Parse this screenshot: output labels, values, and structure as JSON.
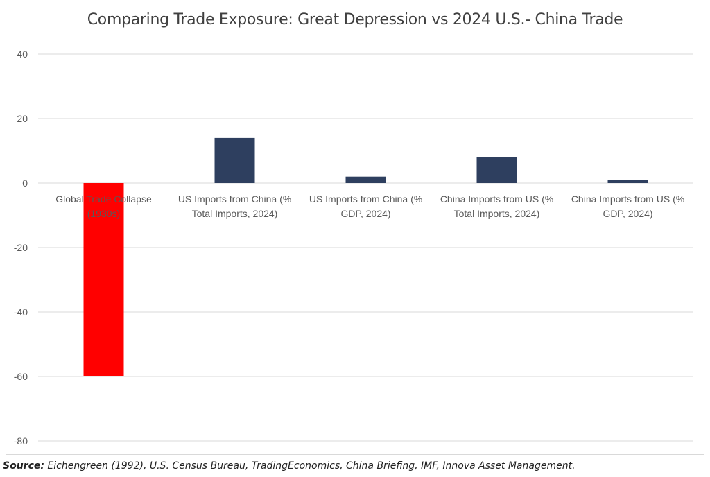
{
  "chart_data": {
    "type": "bar",
    "title": "Comparing Trade Exposure: Great Depression vs 2024 U.S.- China Trade",
    "xlabel": "",
    "ylabel": "",
    "ylim": [
      -80,
      40
    ],
    "yticks": [
      40,
      20,
      0,
      -20,
      -40,
      -60,
      -80
    ],
    "grid": true,
    "categories": [
      [
        "Global Trade Collapse",
        "(1930s)"
      ],
      [
        "US Imports from China (%",
        "Total Imports, 2024)"
      ],
      [
        "US Imports from China (%",
        "GDP, 2024)"
      ],
      [
        "China Imports from US (%",
        "Total Imports, 2024)"
      ],
      [
        "China Imports from US (%",
        "GDP, 2024)"
      ]
    ],
    "values": [
      -60,
      14,
      2,
      8,
      1
    ],
    "bar_colors": [
      "#ff0000",
      "#2e3f5f",
      "#2e3f5f",
      "#2e3f5f",
      "#2e3f5f"
    ],
    "gridline_color": "#d9d9d9"
  },
  "source": {
    "label": "Source:",
    "text": " Eichengreen (1992), U.S. Census Bureau, TradingEconomics, China Briefing, IMF, Innova Asset Management."
  }
}
